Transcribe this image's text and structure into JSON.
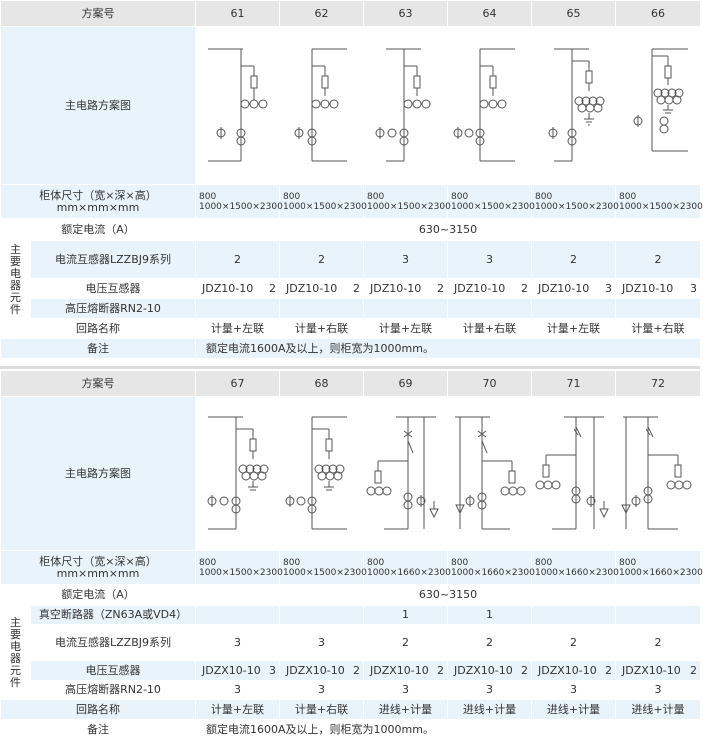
{
  "labels": {
    "scheme_no": "方案号",
    "diagram": "主电路方案图",
    "dims_line1": "柜体尺寸（宽×深×高）",
    "dims_line2": "mm×mm×mm",
    "current": "额定电流（A）",
    "main_components": "主要电器元件",
    "ct": "电流互感器LZZBJ9系列",
    "vt": "电压互感器",
    "fuse": "高压熔断器RN2-10",
    "vcb": "真空断路器（ZN63A或VD4）",
    "circuit": "回路名称",
    "remark": "备注"
  },
  "table1": {
    "schemes": [
      "61",
      "62",
      "63",
      "64",
      "65",
      "66"
    ],
    "dims": [
      {
        "w": "800",
        "rest": "1000×1500×2300"
      },
      {
        "w": "800",
        "rest": "1000×1500×2300"
      },
      {
        "w": "800",
        "rest": "1000×1500×2300"
      },
      {
        "w": "800",
        "rest": "1000×1500×2300"
      },
      {
        "w": "800",
        "rest": "1000×1500×2300"
      },
      {
        "w": "800",
        "rest": "1000×1500×2300"
      }
    ],
    "current": "630~3150",
    "ct": [
      "2",
      "2",
      "3",
      "3",
      "2",
      "2"
    ],
    "vt": [
      {
        "model": "JDZ10-10",
        "qty": "2"
      },
      {
        "model": "JDZ10-10",
        "qty": "2"
      },
      {
        "model": "JDZ10-10",
        "qty": "2"
      },
      {
        "model": "JDZ10-10",
        "qty": "2"
      },
      {
        "model": "JDZ10-10",
        "qty": "3"
      },
      {
        "model": "JDZ10-10",
        "qty": "3"
      }
    ],
    "fuse": [
      "",
      "",
      "",
      "",
      "",
      ""
    ],
    "circuit": [
      "计量+左联",
      "计量+右联",
      "计量+左联",
      "计量+右联",
      "计量+左联",
      "计量+右联"
    ],
    "remark": "额定电流1600A及以上，则柜宽为1000mm。"
  },
  "table2": {
    "schemes": [
      "67",
      "68",
      "69",
      "70",
      "71",
      "72"
    ],
    "dims": [
      {
        "w": "800",
        "rest": "1000×1500×2300"
      },
      {
        "w": "800",
        "rest": "1000×1500×2300"
      },
      {
        "w": "800",
        "rest": "1000×1660×2300"
      },
      {
        "w": "800",
        "rest": "1000×1660×2300"
      },
      {
        "w": "800",
        "rest": "1000×1660×2300"
      },
      {
        "w": "800",
        "rest": "1000×1660×2300"
      }
    ],
    "current": "630~3150",
    "vcb": [
      "",
      "",
      "1",
      "1",
      "",
      ""
    ],
    "ct": [
      "3",
      "3",
      "2",
      "2",
      "2",
      "2"
    ],
    "vt": [
      {
        "model": "JDZX10-10",
        "qty": "3"
      },
      {
        "model": "JDZX10-10",
        "qty": "2"
      },
      {
        "model": "JDZX10-10",
        "qty": "2"
      },
      {
        "model": "JDZX10-10",
        "qty": "2"
      },
      {
        "model": "JDZX10-10",
        "qty": "2"
      },
      {
        "model": "JDZX10-10",
        "qty": "2"
      }
    ],
    "fuse": [
      "3",
      "3",
      "3",
      "3",
      "3",
      "3"
    ],
    "circuit": [
      "计量+左联",
      "计量+右联",
      "进线+计量",
      "进线+计量",
      "进线+计量",
      "进线+计量"
    ],
    "remark": "额定电流1600A及以上，则柜宽为1000mm。"
  },
  "colors": {
    "header": "#e6e6e6",
    "band": "#e9f3fb",
    "line": "#555555"
  }
}
